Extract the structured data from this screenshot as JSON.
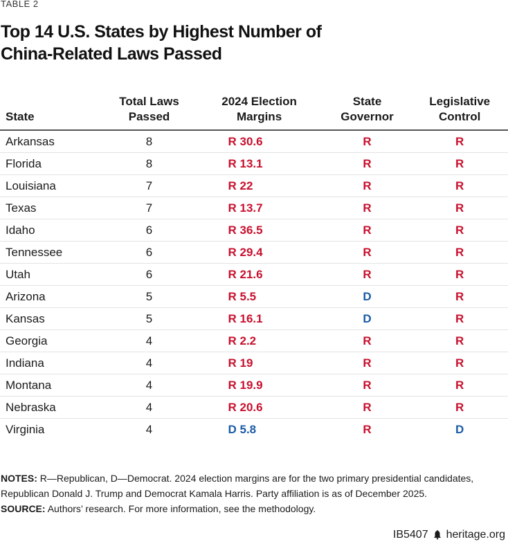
{
  "kicker": "TABLE 2",
  "title_line1": "Top 14 U.S. States by Highest Number of",
  "title_line2": "China-Related Laws Passed",
  "colors": {
    "republican": "#c8102e",
    "democrat": "#1a5ba6"
  },
  "headers": {
    "state": "State",
    "laws_line1": "Total Laws",
    "laws_line2": "Passed",
    "margin_line1": "2024 Election",
    "margin_line2": "Margins",
    "gov_line1": "State",
    "gov_line2": "Governor",
    "leg_line1": "Legislative",
    "leg_line2": "Control"
  },
  "rows": [
    {
      "state": "Arkansas",
      "laws": "8",
      "margin": "R 30.6",
      "governor": "R",
      "legislature": "R"
    },
    {
      "state": "Florida",
      "laws": "8",
      "margin": "R 13.1",
      "governor": "R",
      "legislature": "R"
    },
    {
      "state": "Louisiana",
      "laws": "7",
      "margin": "R 22",
      "governor": "R",
      "legislature": "R"
    },
    {
      "state": "Texas",
      "laws": "7",
      "margin": "R 13.7",
      "governor": "R",
      "legislature": "R"
    },
    {
      "state": "Idaho",
      "laws": "6",
      "margin": "R 36.5",
      "governor": "R",
      "legislature": "R"
    },
    {
      "state": "Tennessee",
      "laws": "6",
      "margin": "R 29.4",
      "governor": "R",
      "legislature": "R"
    },
    {
      "state": "Utah",
      "laws": "6",
      "margin": "R 21.6",
      "governor": "R",
      "legislature": "R"
    },
    {
      "state": "Arizona",
      "laws": "5",
      "margin": "R 5.5",
      "governor": "D",
      "legislature": "R"
    },
    {
      "state": "Kansas",
      "laws": "5",
      "margin": "R 16.1",
      "governor": "D",
      "legislature": "R"
    },
    {
      "state": "Georgia",
      "laws": "4",
      "margin": "R 2.2",
      "governor": "R",
      "legislature": "R"
    },
    {
      "state": "Indiana",
      "laws": "4",
      "margin": "R 19",
      "governor": "R",
      "legislature": "R"
    },
    {
      "state": "Montana",
      "laws": "4",
      "margin": "R 19.9",
      "governor": "R",
      "legislature": "R"
    },
    {
      "state": "Nebraska",
      "laws": "4",
      "margin": "R 20.6",
      "governor": "R",
      "legislature": "R"
    },
    {
      "state": "Virginia",
      "laws": "4",
      "margin": "D 5.8",
      "governor": "R",
      "legislature": "D"
    }
  ],
  "notes_label": "NOTES:",
  "notes_text": "R—Republican, D—Democrat. 2024 election margins are for the two primary presidential candidates, Republican Donald J. Trump and Democrat Kamala Harris. Party affiliation is as of December 2025.",
  "source_label": "SOURCE:",
  "source_text": "Authors’ research. For more information, see the methodology.",
  "footer_id": "IB5407",
  "footer_icon": "liberty-bell-icon",
  "footer_site": "heritage.org"
}
